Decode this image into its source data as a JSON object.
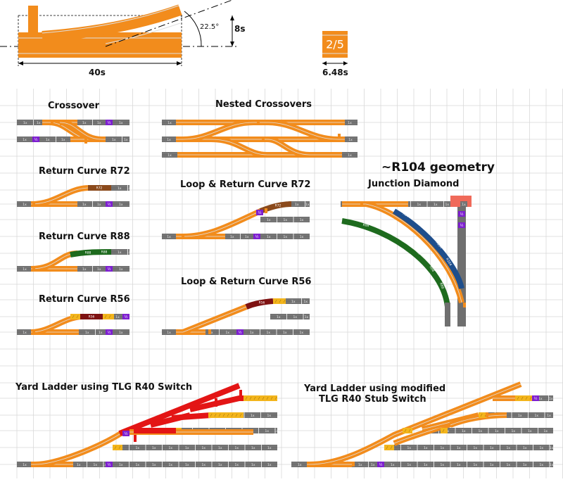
{
  "titles": {
    "crossover": "Crossover",
    "nested": "Nested Crossovers",
    "r104": "~R104 geometry",
    "rc72": "Return Curve R72",
    "loop72": "Loop & Return Curve R72",
    "junction": "Junction Diamond",
    "rc88": "Return Curve R88",
    "rc56": "Return Curve R56",
    "loop56": "Loop & Return Curve R56",
    "yard1": "Yard Ladder using TLG R40 Switch",
    "yard2a": "Yard Ladder using modified",
    "yard2b": "TLG R40 Stub Switch"
  },
  "dims": {
    "angle": "22.5°",
    "height": "8s",
    "length": "40s",
    "frac_len": "6.48s",
    "frac": "2/5"
  },
  "labels": {
    "one": "1x",
    "half": "½",
    "r72": "R72",
    "r88": "R88",
    "r56": "R56",
    "r104": "R104"
  },
  "colors": {
    "orange": "#F28C1C",
    "rail": "#E0E0E0",
    "straight": "#6F6F6F",
    "half": "#7E1FD0",
    "yellow": "#F3B51C",
    "brown": "#8B4A1C",
    "green": "#1E6B1E",
    "maroon": "#7E1212",
    "blue": "#1E4E8C",
    "red": "#E31515",
    "grid": "#D9D9D9"
  }
}
